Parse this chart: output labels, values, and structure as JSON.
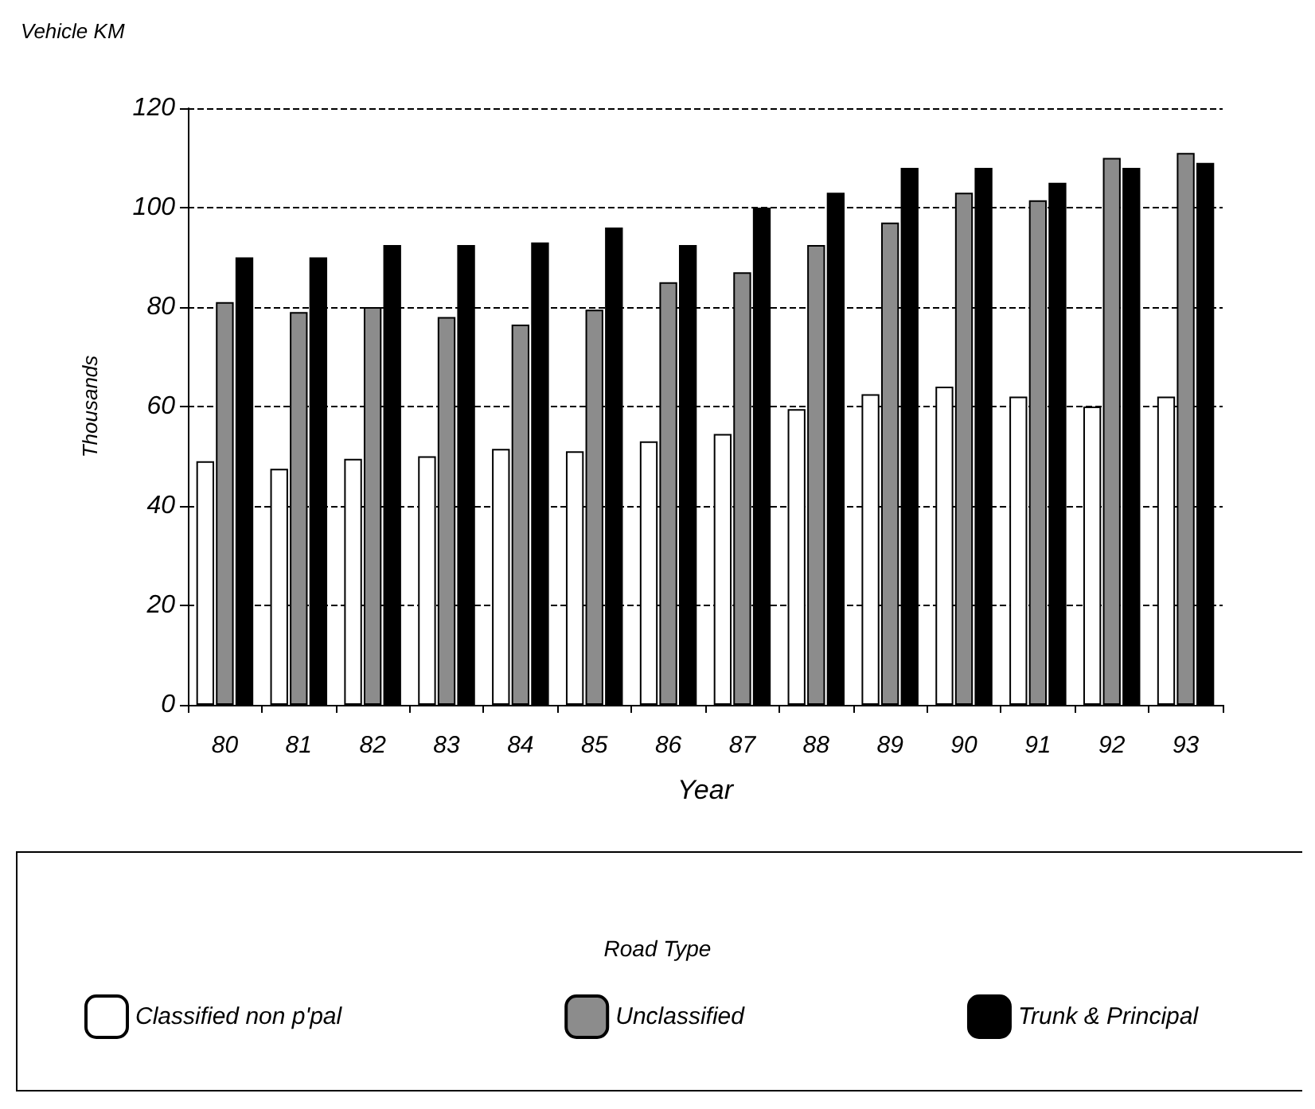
{
  "chart_data": {
    "type": "bar",
    "title": "Vehicle KM",
    "xlabel": "Year",
    "ylabel": "Thousands",
    "legend_title": "Road Type",
    "categories": [
      "80",
      "81",
      "82",
      "83",
      "84",
      "85",
      "86",
      "87",
      "88",
      "89",
      "90",
      "91",
      "92",
      "93"
    ],
    "series": [
      {
        "name": "Classified non p'pal",
        "color": "#ffffff",
        "values": [
          49,
          47.5,
          49.5,
          50,
          51.5,
          51,
          53,
          54.5,
          59.5,
          62.5,
          64,
          62,
          60,
          62
        ]
      },
      {
        "name": "Unclassified",
        "color": "#8c8c8c",
        "values": [
          81,
          79,
          80,
          78,
          76.5,
          79.5,
          85,
          87,
          92.5,
          97,
          103,
          101.5,
          110,
          111
        ]
      },
      {
        "name": "Trunk & Principal",
        "color": "#000000",
        "values": [
          90,
          90,
          92.5,
          92.5,
          93,
          96,
          92.5,
          100,
          103,
          108,
          108,
          105,
          108,
          109
        ]
      }
    ],
    "ylim": [
      0,
      120
    ],
    "yticks": [
      0,
      20,
      40,
      60,
      80,
      100,
      120
    ],
    "grid": "y",
    "legend": "bottom"
  }
}
